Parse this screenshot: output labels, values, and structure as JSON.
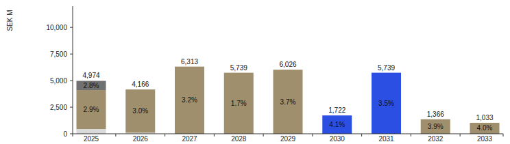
{
  "chart_data": {
    "type": "bar",
    "stacked": true,
    "y_label": "SEK M",
    "categories": [
      "2025",
      "2026",
      "2027",
      "2028",
      "2029",
      "2030",
      "2031",
      "2032",
      "2033"
    ],
    "series": [
      {
        "color": "#d9d9d9",
        "values": [
          450,
          100,
          null,
          null,
          null,
          null,
          null,
          null,
          null
        ]
      },
      {
        "color": "#a08f6c",
        "values": [
          3654,
          4066,
          6313,
          5739,
          6026,
          null,
          null,
          1366,
          1033
        ],
        "rate_labels": [
          "2.9%",
          "3.0%",
          "3.2%",
          "1.7%",
          "3.7%",
          null,
          null,
          "3.9%",
          "4.0%"
        ]
      },
      {
        "color": "#2b4fe3",
        "values": [
          null,
          null,
          null,
          null,
          null,
          1722,
          5739,
          null,
          null
        ],
        "rate_labels": [
          null,
          null,
          null,
          null,
          null,
          "4.1%",
          "3.5%",
          null,
          null
        ]
      },
      {
        "color": "#707070",
        "values": [
          870,
          null,
          null,
          null,
          null,
          null,
          null,
          null,
          null
        ],
        "rate_labels": [
          "2.8%",
          null,
          null,
          null,
          null,
          null,
          null,
          null,
          null
        ]
      }
    ],
    "totals": [
      4974,
      4166,
      6313,
      5739,
      6026,
      1722,
      5739,
      1366,
      1033
    ],
    "total_labels": [
      "4,974",
      "4,166",
      "6,313",
      "5,739",
      "6,026",
      "1,722",
      "5,739",
      "1,366",
      "1,033"
    ],
    "ylim": [
      0,
      12000
    ],
    "yticks": [
      0,
      {
        "value": 2500,
        "label": "2,500"
      },
      {
        "value": 5000,
        "label": "5,000"
      },
      {
        "value": 7500,
        "label": "7,500"
      },
      {
        "value": 10000,
        "label": "10,000"
      }
    ],
    "grid": false,
    "tick_labels": true
  }
}
